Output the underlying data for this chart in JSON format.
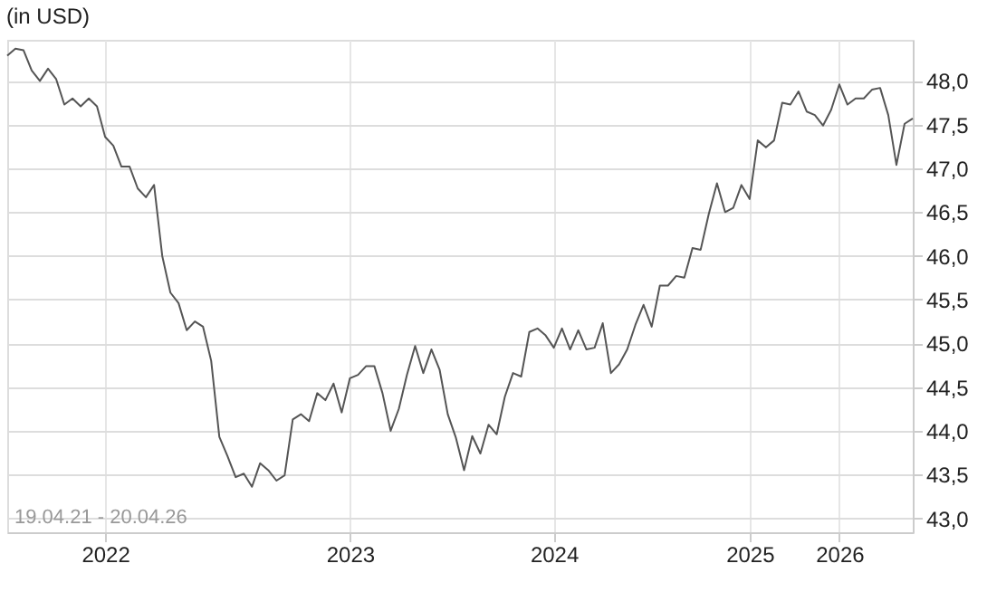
{
  "chart_data": {
    "type": "line",
    "title": "(in USD)",
    "categories": [
      null,
      null,
      null,
      null,
      null,
      null,
      null,
      null,
      null,
      null,
      null,
      null,
      "2022",
      null,
      null,
      null,
      null,
      null,
      null,
      null,
      null,
      null,
      null,
      null,
      null,
      null,
      null,
      null,
      null,
      null,
      null,
      null,
      null,
      null,
      null,
      null,
      null,
      null,
      null,
      null,
      null,
      null,
      "2023",
      null,
      null,
      null,
      null,
      null,
      null,
      null,
      null,
      null,
      null,
      null,
      null,
      null,
      null,
      null,
      null,
      null,
      null,
      null,
      null,
      null,
      null,
      null,
      null,
      "2024",
      null,
      null,
      null,
      null,
      null,
      null,
      null,
      null,
      null,
      null,
      null,
      null,
      null,
      null,
      null,
      null,
      null,
      null,
      null,
      null,
      null,
      null,
      null,
      "2025",
      null,
      null,
      null,
      null,
      null,
      null,
      null,
      null,
      null,
      null,
      "2026",
      null,
      null,
      null,
      null,
      null,
      null,
      null,
      null,
      null
    ],
    "series": [
      {
        "color": "#555555",
        "values": [
          48.29,
          48.37,
          48.35,
          48.12,
          48.0,
          48.14,
          48.02,
          47.73,
          47.8,
          47.71,
          47.8,
          47.71,
          47.36,
          47.26,
          47.02,
          47.02,
          46.77,
          46.67,
          46.81,
          46.0,
          45.58,
          45.46,
          45.15,
          45.25,
          45.19,
          44.8,
          43.93,
          43.71,
          43.47,
          43.51,
          43.36,
          43.63,
          43.55,
          43.43,
          43.49,
          44.13,
          44.19,
          44.11,
          44.43,
          44.35,
          44.54,
          44.21,
          44.6,
          44.64,
          44.74,
          44.74,
          44.43,
          44.0,
          44.25,
          44.64,
          44.97,
          44.66,
          44.93,
          44.7,
          44.19,
          43.92,
          43.55,
          43.94,
          43.74,
          44.07,
          43.96,
          44.39,
          44.66,
          44.62,
          45.13,
          45.17,
          45.09,
          44.95,
          45.17,
          44.93,
          45.15,
          44.93,
          44.95,
          45.23,
          44.66,
          44.76,
          44.93,
          45.21,
          45.44,
          45.19,
          45.66,
          45.66,
          45.77,
          45.75,
          46.09,
          46.07,
          46.48,
          46.83,
          46.5,
          46.55,
          46.81,
          46.65,
          47.32,
          47.24,
          47.32,
          47.75,
          47.73,
          47.88,
          47.65,
          47.61,
          47.49,
          47.67,
          47.96,
          47.73,
          47.8,
          47.8,
          47.9,
          47.92,
          47.61,
          47.04,
          47.51,
          47.57
        ]
      }
    ],
    "ylim": [
      42.84,
      48.47
    ],
    "yticks": [
      {
        "value": 43.0,
        "label": "43,0"
      },
      {
        "value": 43.5,
        "label": "43,5"
      },
      {
        "value": 44.0,
        "label": "44,0"
      },
      {
        "value": 44.5,
        "label": "44,5"
      },
      {
        "value": 45.0,
        "label": "45,0"
      },
      {
        "value": 45.5,
        "label": "45,5"
      },
      {
        "value": 46.0,
        "label": "46,0"
      },
      {
        "value": 46.5,
        "label": "46,5"
      },
      {
        "value": 47.0,
        "label": "47,0"
      },
      {
        "value": 47.5,
        "label": "47,5"
      },
      {
        "value": 48.0,
        "label": "48,0"
      }
    ],
    "grid": true,
    "marker": "none",
    "line_style": "solid",
    "annotations": [
      "19.04.21 - 20.04.26"
    ]
  }
}
